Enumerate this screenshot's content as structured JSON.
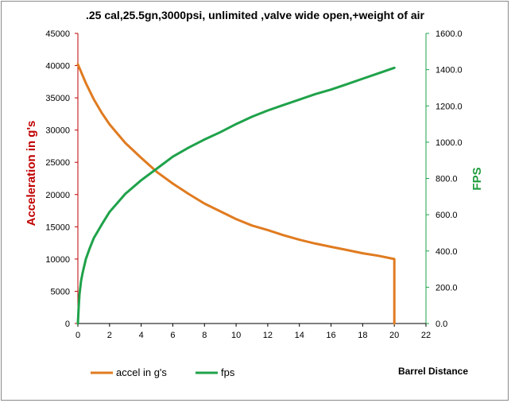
{
  "chart_data": {
    "type": "line",
    "title": ".25 cal,25.5gn,3000psi, unlimited ,valve wide open,+weight of air",
    "xlabel": "Barrel Distance",
    "ylabel_left": "Acceleration in g's",
    "ylabel_right": "FPS",
    "xlim": [
      0,
      22
    ],
    "ylim_left": [
      0,
      45000
    ],
    "ylim_right": [
      0,
      1600
    ],
    "x_ticks": [
      "0",
      "2",
      "4",
      "6",
      "8",
      "10",
      "12",
      "14",
      "16",
      "18",
      "20",
      "22"
    ],
    "y_left_ticks": [
      "0",
      "5000",
      "10000",
      "15000",
      "20000",
      "25000",
      "30000",
      "35000",
      "40000",
      "45000"
    ],
    "y_right_ticks": [
      "0.0",
      "200.0",
      "400.0",
      "600.0",
      "800.0",
      "1000.0",
      "1200.0",
      "1400.0",
      "1600.0"
    ],
    "grid": false,
    "legend_position": "bottom-left",
    "series": [
      {
        "name": "accel  in g's",
        "axis": "left",
        "color": "#e07b20",
        "x": [
          0,
          0.5,
          1,
          1.5,
          2,
          3,
          4,
          5,
          6,
          7,
          8,
          9,
          10,
          11,
          12,
          13,
          14,
          15,
          16,
          17,
          18,
          19,
          20,
          20
        ],
        "y": [
          40200,
          37300,
          34800,
          32700,
          30900,
          28000,
          25700,
          23500,
          21700,
          20100,
          18600,
          17400,
          16200,
          15200,
          14500,
          13700,
          13000,
          12400,
          11900,
          11400,
          10900,
          10500,
          10000,
          0
        ]
      },
      {
        "name": "fps",
        "axis": "right",
        "color": "#1fa24a",
        "x": [
          0,
          0.05,
          0.1,
          0.2,
          0.3,
          0.5,
          0.75,
          1,
          1.5,
          2,
          3,
          4,
          5,
          6,
          7,
          8,
          9,
          10,
          11,
          12,
          13,
          14,
          15,
          16,
          17,
          18,
          19,
          20
        ],
        "y": [
          0,
          90,
          160,
          235,
          280,
          355,
          415,
          470,
          545,
          615,
          715,
          790,
          855,
          920,
          970,
          1015,
          1055,
          1100,
          1140,
          1175,
          1205,
          1235,
          1265,
          1290,
          1320,
          1350,
          1380,
          1410
        ]
      }
    ]
  }
}
